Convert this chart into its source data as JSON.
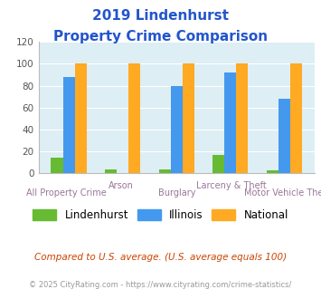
{
  "title_line1": "2019 Lindenhurst",
  "title_line2": "Property Crime Comparison",
  "categories": [
    "All Property Crime",
    "Arson",
    "Burglary",
    "Larceny & Theft",
    "Motor Vehicle Theft"
  ],
  "lindenhurst": [
    14,
    4,
    4,
    17,
    3
  ],
  "illinois": [
    88,
    0,
    80,
    92,
    68
  ],
  "national": [
    100,
    100,
    100,
    100,
    100
  ],
  "color_lindenhurst": "#66bb33",
  "color_illinois": "#4499ee",
  "color_national": "#ffaa22",
  "ylim": [
    0,
    120
  ],
  "yticks": [
    0,
    20,
    40,
    60,
    80,
    100,
    120
  ],
  "bg_color": "#ddeef5",
  "legend_labels": [
    "Lindenhurst",
    "Illinois",
    "National"
  ],
  "footnote1": "Compared to U.S. average. (U.S. average equals 100)",
  "footnote2": "© 2025 CityRating.com - https://www.cityrating.com/crime-statistics/",
  "xlabel_top": [
    "",
    "Arson",
    "",
    "Larceny & Theft",
    ""
  ],
  "xlabel_bottom": [
    "All Property Crime",
    "",
    "Burglary",
    "",
    "Motor Vehicle Theft"
  ],
  "title_color": "#2255cc",
  "xlabel_color": "#997799",
  "footnote1_color": "#cc4400",
  "footnote2_color": "#999999"
}
